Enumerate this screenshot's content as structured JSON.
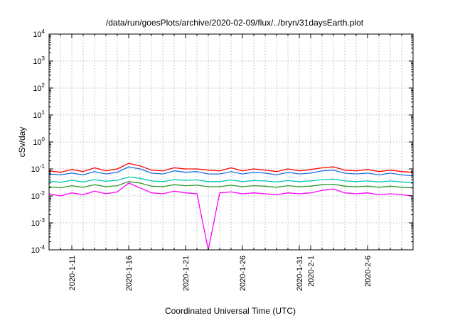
{
  "chart_data": {
    "type": "line",
    "title": "/data/run/goesPlots/archive/2020-02-09/flux/../bryn/31daysEarth.plot",
    "xlabel": "Coordinated Universal Time (UTC)",
    "ylabel": "cSv/day",
    "yscale": "log",
    "ylim": [
      0.0001,
      10000
    ],
    "xlim": [
      "2020-01-09",
      "2020-02-10"
    ],
    "grid": true,
    "yticks": [
      {
        "value": 0.0001,
        "base": "10",
        "exp": "-4"
      },
      {
        "value": 0.001,
        "base": "10",
        "exp": "-3"
      },
      {
        "value": 0.01,
        "base": "10",
        "exp": "-2"
      },
      {
        "value": 0.1,
        "base": "10",
        "exp": "-1"
      },
      {
        "value": 1,
        "base": "10",
        "exp": "0"
      },
      {
        "value": 10,
        "base": "10",
        "exp": "1"
      },
      {
        "value": 100,
        "base": "10",
        "exp": "2"
      },
      {
        "value": 1000,
        "base": "10",
        "exp": "3"
      },
      {
        "value": 10000,
        "base": "10",
        "exp": "4"
      }
    ],
    "xticks": [
      {
        "date": "2020-01-11",
        "label": "2020-1-11"
      },
      {
        "date": "2020-01-16",
        "label": "2020-1-16"
      },
      {
        "date": "2020-01-21",
        "label": "2020-1-21"
      },
      {
        "date": "2020-01-26",
        "label": "2020-1-26"
      },
      {
        "date": "2020-01-31",
        "label": "2020-1-31"
      },
      {
        "date": "2020-02-01",
        "label": "2020-2-1"
      },
      {
        "date": "2020-02-06",
        "label": "2020-2-6"
      }
    ],
    "series": [
      {
        "color": "#ff0000",
        "values": [
          [
            "2020-01-09",
            0.085
          ],
          [
            "2020-01-10",
            0.075
          ],
          [
            "2020-01-11",
            0.095
          ],
          [
            "2020-01-12",
            0.08
          ],
          [
            "2020-01-13",
            0.11
          ],
          [
            "2020-01-14",
            0.085
          ],
          [
            "2020-01-15",
            0.1
          ],
          [
            "2020-01-16",
            0.16
          ],
          [
            "2020-01-17",
            0.13
          ],
          [
            "2020-01-18",
            0.09
          ],
          [
            "2020-01-19",
            0.085
          ],
          [
            "2020-01-20",
            0.11
          ],
          [
            "2020-01-21",
            0.1
          ],
          [
            "2020-01-22",
            0.1
          ],
          [
            "2020-01-23",
            0.09
          ],
          [
            "2020-01-24",
            0.085
          ],
          [
            "2020-01-25",
            0.11
          ],
          [
            "2020-01-26",
            0.085
          ],
          [
            "2020-01-27",
            0.1
          ],
          [
            "2020-01-28",
            0.09
          ],
          [
            "2020-01-29",
            0.08
          ],
          [
            "2020-01-30",
            0.1
          ],
          [
            "2020-01-31",
            0.085
          ],
          [
            "2020-02-01",
            0.095
          ],
          [
            "2020-02-02",
            0.11
          ],
          [
            "2020-02-03",
            0.12
          ],
          [
            "2020-02-04",
            0.09
          ],
          [
            "2020-02-05",
            0.085
          ],
          [
            "2020-02-06",
            0.095
          ],
          [
            "2020-02-07",
            0.08
          ],
          [
            "2020-02-08",
            0.09
          ],
          [
            "2020-02-09",
            0.08
          ],
          [
            "2020-02-10",
            0.075
          ]
        ]
      },
      {
        "color": "#1f6fe0",
        "values": [
          [
            "2020-01-09",
            0.065
          ],
          [
            "2020-01-10",
            0.06
          ],
          [
            "2020-01-11",
            0.07
          ],
          [
            "2020-01-12",
            0.06
          ],
          [
            "2020-01-13",
            0.08
          ],
          [
            "2020-01-14",
            0.065
          ],
          [
            "2020-01-15",
            0.075
          ],
          [
            "2020-01-16",
            0.12
          ],
          [
            "2020-01-17",
            0.1
          ],
          [
            "2020-01-18",
            0.07
          ],
          [
            "2020-01-19",
            0.065
          ],
          [
            "2020-01-20",
            0.085
          ],
          [
            "2020-01-21",
            0.075
          ],
          [
            "2020-01-22",
            0.08
          ],
          [
            "2020-01-23",
            0.065
          ],
          [
            "2020-01-24",
            0.065
          ],
          [
            "2020-01-25",
            0.08
          ],
          [
            "2020-01-26",
            0.065
          ],
          [
            "2020-01-27",
            0.075
          ],
          [
            "2020-01-28",
            0.07
          ],
          [
            "2020-01-29",
            0.06
          ],
          [
            "2020-01-30",
            0.075
          ],
          [
            "2020-01-31",
            0.065
          ],
          [
            "2020-02-01",
            0.07
          ],
          [
            "2020-02-02",
            0.085
          ],
          [
            "2020-02-03",
            0.09
          ],
          [
            "2020-02-04",
            0.07
          ],
          [
            "2020-02-05",
            0.065
          ],
          [
            "2020-02-06",
            0.07
          ],
          [
            "2020-02-07",
            0.06
          ],
          [
            "2020-02-08",
            0.07
          ],
          [
            "2020-02-09",
            0.06
          ],
          [
            "2020-02-10",
            0.055
          ]
        ]
      },
      {
        "color": "#00c8b4",
        "values": [
          [
            "2020-01-09",
            0.035
          ],
          [
            "2020-01-10",
            0.032
          ],
          [
            "2020-01-11",
            0.038
          ],
          [
            "2020-01-12",
            0.033
          ],
          [
            "2020-01-13",
            0.04
          ],
          [
            "2020-01-14",
            0.035
          ],
          [
            "2020-01-15",
            0.038
          ],
          [
            "2020-01-16",
            0.05
          ],
          [
            "2020-01-17",
            0.045
          ],
          [
            "2020-01-18",
            0.036
          ],
          [
            "2020-01-19",
            0.034
          ],
          [
            "2020-01-20",
            0.04
          ],
          [
            "2020-01-21",
            0.038
          ],
          [
            "2020-01-22",
            0.039
          ],
          [
            "2020-01-23",
            0.034
          ],
          [
            "2020-01-24",
            0.034
          ],
          [
            "2020-01-25",
            0.039
          ],
          [
            "2020-01-26",
            0.034
          ],
          [
            "2020-01-27",
            0.037
          ],
          [
            "2020-01-28",
            0.036
          ],
          [
            "2020-01-29",
            0.033
          ],
          [
            "2020-01-30",
            0.037
          ],
          [
            "2020-01-31",
            0.034
          ],
          [
            "2020-02-01",
            0.036
          ],
          [
            "2020-02-02",
            0.04
          ],
          [
            "2020-02-03",
            0.042
          ],
          [
            "2020-02-04",
            0.036
          ],
          [
            "2020-02-05",
            0.034
          ],
          [
            "2020-02-06",
            0.036
          ],
          [
            "2020-02-07",
            0.033
          ],
          [
            "2020-02-08",
            0.036
          ],
          [
            "2020-02-09",
            0.033
          ],
          [
            "2020-02-10",
            0.031
          ]
        ]
      },
      {
        "color": "#2a9a2a",
        "values": [
          [
            "2020-01-09",
            0.022
          ],
          [
            "2020-01-10",
            0.02
          ],
          [
            "2020-01-11",
            0.024
          ],
          [
            "2020-01-12",
            0.021
          ],
          [
            "2020-01-13",
            0.026
          ],
          [
            "2020-01-14",
            0.022
          ],
          [
            "2020-01-15",
            0.024
          ],
          [
            "2020-01-16",
            0.034
          ],
          [
            "2020-01-17",
            0.03
          ],
          [
            "2020-01-18",
            0.023
          ],
          [
            "2020-01-19",
            0.022
          ],
          [
            "2020-01-20",
            0.026
          ],
          [
            "2020-01-21",
            0.024
          ],
          [
            "2020-01-22",
            0.025
          ],
          [
            "2020-01-23",
            0.022
          ],
          [
            "2020-01-24",
            0.022
          ],
          [
            "2020-01-25",
            0.025
          ],
          [
            "2020-01-26",
            0.022
          ],
          [
            "2020-01-27",
            0.024
          ],
          [
            "2020-01-28",
            0.023
          ],
          [
            "2020-01-29",
            0.021
          ],
          [
            "2020-01-30",
            0.024
          ],
          [
            "2020-01-31",
            0.022
          ],
          [
            "2020-02-01",
            0.023
          ],
          [
            "2020-02-02",
            0.026
          ],
          [
            "2020-02-03",
            0.027
          ],
          [
            "2020-02-04",
            0.023
          ],
          [
            "2020-02-05",
            0.022
          ],
          [
            "2020-02-06",
            0.023
          ],
          [
            "2020-02-07",
            0.021
          ],
          [
            "2020-02-08",
            0.023
          ],
          [
            "2020-02-09",
            0.021
          ],
          [
            "2020-02-10",
            0.02
          ]
        ]
      },
      {
        "color": "#ff00ff",
        "values": [
          [
            "2020-01-09",
            0.012
          ],
          [
            "2020-01-10",
            0.01
          ],
          [
            "2020-01-11",
            0.013
          ],
          [
            "2020-01-12",
            0.011
          ],
          [
            "2020-01-13",
            0.015
          ],
          [
            "2020-01-14",
            0.012
          ],
          [
            "2020-01-15",
            0.014
          ],
          [
            "2020-01-16",
            0.03
          ],
          [
            "2020-01-17",
            0.02
          ],
          [
            "2020-01-18",
            0.013
          ],
          [
            "2020-01-19",
            0.012
          ],
          [
            "2020-01-20",
            0.015
          ],
          [
            "2020-01-21",
            0.013
          ],
          [
            "2020-01-22",
            0.012
          ],
          [
            "2020-01-23",
            0.0001
          ],
          [
            "2020-01-24",
            0.013
          ],
          [
            "2020-01-25",
            0.014
          ],
          [
            "2020-01-26",
            0.012
          ],
          [
            "2020-01-27",
            0.013
          ],
          [
            "2020-01-28",
            0.012
          ],
          [
            "2020-01-29",
            0.011
          ],
          [
            "2020-01-30",
            0.013
          ],
          [
            "2020-01-31",
            0.012
          ],
          [
            "2020-02-01",
            0.013
          ],
          [
            "2020-02-02",
            0.016
          ],
          [
            "2020-02-03",
            0.018
          ],
          [
            "2020-02-04",
            0.013
          ],
          [
            "2020-02-05",
            0.012
          ],
          [
            "2020-02-06",
            0.013
          ],
          [
            "2020-02-07",
            0.011
          ],
          [
            "2020-02-08",
            0.012
          ],
          [
            "2020-02-09",
            0.011
          ],
          [
            "2020-02-10",
            0.01
          ]
        ]
      }
    ]
  }
}
